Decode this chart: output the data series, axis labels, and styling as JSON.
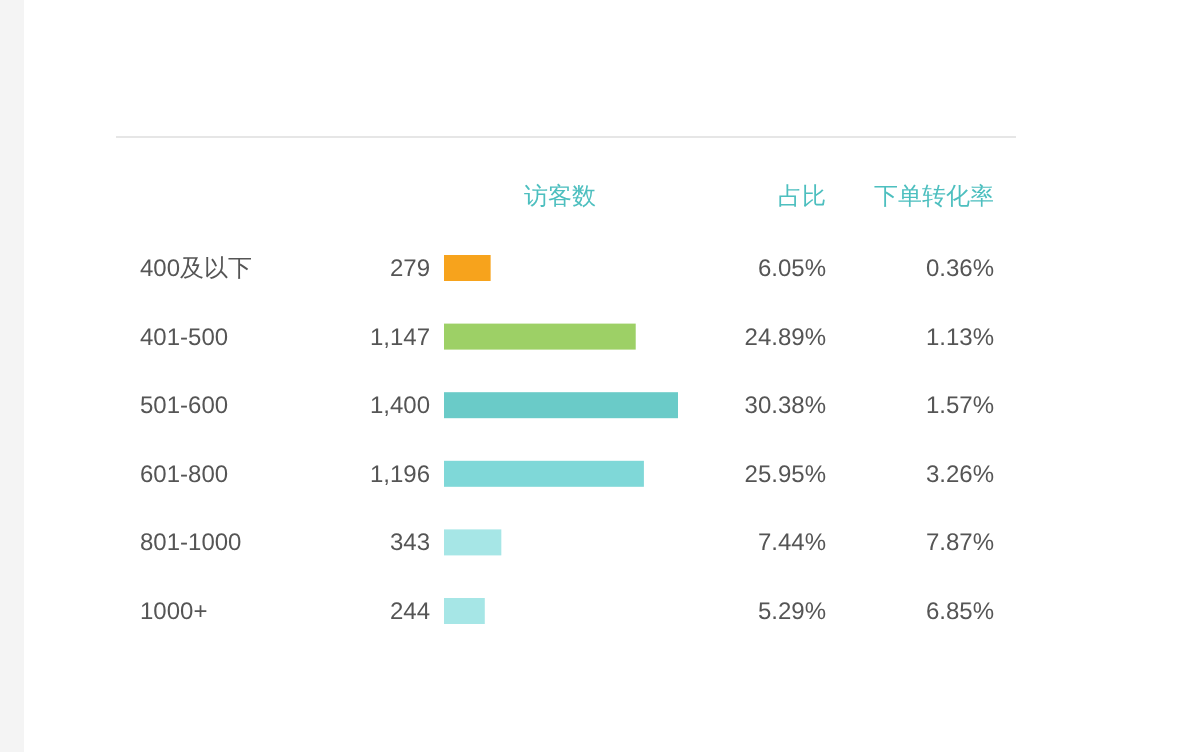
{
  "chart_data": {
    "type": "bar",
    "orientation": "horizontal",
    "xlabel": "访客数",
    "categories": [
      "400及以下",
      "401-500",
      "501-600",
      "601-800",
      "801-1000",
      "1000+"
    ],
    "values": [
      279,
      1147,
      1400,
      1196,
      343,
      244
    ],
    "colors": [
      "#f7a31c",
      "#9dd066",
      "#6acbc8",
      "#7fd8d8",
      "#a6e6e6",
      "#a6e6e6"
    ],
    "value_labels": [
      "279",
      "1,147",
      "1,400",
      "1,196",
      "343",
      "244"
    ],
    "annotations": [
      "占比",
      "下单转化率",
      "6.05%",
      "0.36%",
      "24.89%",
      "1.13%",
      "30.38%",
      "1.57%",
      "25.95%",
      "3.26%",
      "7.44%",
      "7.87%",
      "5.29%",
      "6.85%"
    ]
  }
}
